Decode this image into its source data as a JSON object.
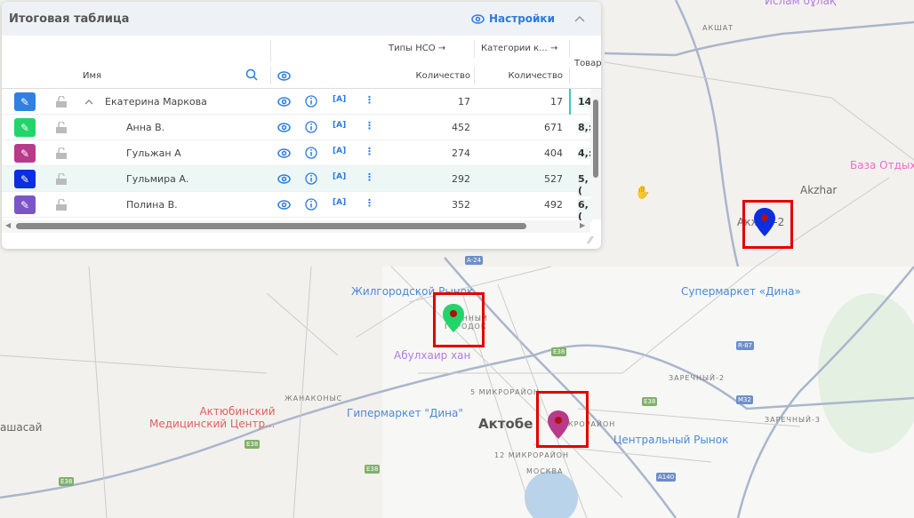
{
  "panel": {
    "title": "Итоговая таблица",
    "settings_label": "Настройки",
    "columns": {
      "name": "Имя",
      "group1": "Типы НСО",
      "group2": "Категории к...",
      "group3": "Товар",
      "qty1": "Количество",
      "qty2": "Количество"
    },
    "rows": [
      {
        "name": "Екатерина Маркова",
        "qty1": "17",
        "qty2": "17",
        "col3": "14",
        "color": "#2f80e0",
        "expanded": true,
        "level": 0
      },
      {
        "name": "Анна В.",
        "qty1": "452",
        "qty2": "671",
        "col3": "8,:",
        "color": "#22d46a",
        "level": 1
      },
      {
        "name": "Гульжан А",
        "qty1": "274",
        "qty2": "404",
        "col3": "4,:",
        "color": "#b83a8a",
        "level": 1
      },
      {
        "name": "Гульмира А.",
        "qty1": "292",
        "qty2": "527",
        "col3": "5,(",
        "color": "#0b2ee0",
        "level": 1,
        "selected": true
      },
      {
        "name": "Полина В.",
        "qty1": "352",
        "qty2": "492",
        "col3": "6,(",
        "color": "#7b55c8",
        "level": 1
      }
    ]
  },
  "map": {
    "labels": {
      "islam": "Ислам бұлақ",
      "akshat": "АКШАТ",
      "baza": "База Отдыха",
      "akzhar": "Akzhar",
      "akzhar2": "Акжар-2",
      "zhilgor": "Жилгородской Рынок",
      "voen1": "ВОЕННЫЙ",
      "voen2": "ГОРОДОК",
      "abulkhair": "Абулхаир хан",
      "mkr5": "5 МИКРОРАЙОН",
      "giper": "Гипермаркет \"Дина\"",
      "aktobe": "Актобе",
      "mkr": "МИКРОРАЙОН",
      "mkr12": "12 МИКРОРАЙОН",
      "moskva": "МОСКВА",
      "central": "Центральный Рынок",
      "super": "Супермаркет «Дина»",
      "zar2": "ЗАРЕЧНЫЙ-2",
      "zar3": "ЗАРЕЧНЫЙ-3",
      "med1": "Актюбинский",
      "med2": "Медицинский Центр...",
      "zhanakonys": "ЖАНАКОНЫС",
      "ashasai": "ашасай"
    },
    "shields": {
      "a24": "A-24",
      "e38a": "E38",
      "e38b": "E38",
      "e38c": "E38",
      "e38d": "E38",
      "e38e": "E38",
      "m32": "M32",
      "r87": "R-87",
      "a140": "A140"
    },
    "markers": [
      {
        "color": "#22d46a"
      },
      {
        "color": "#b83a8a"
      },
      {
        "color": "#0b2ee0"
      }
    ]
  }
}
